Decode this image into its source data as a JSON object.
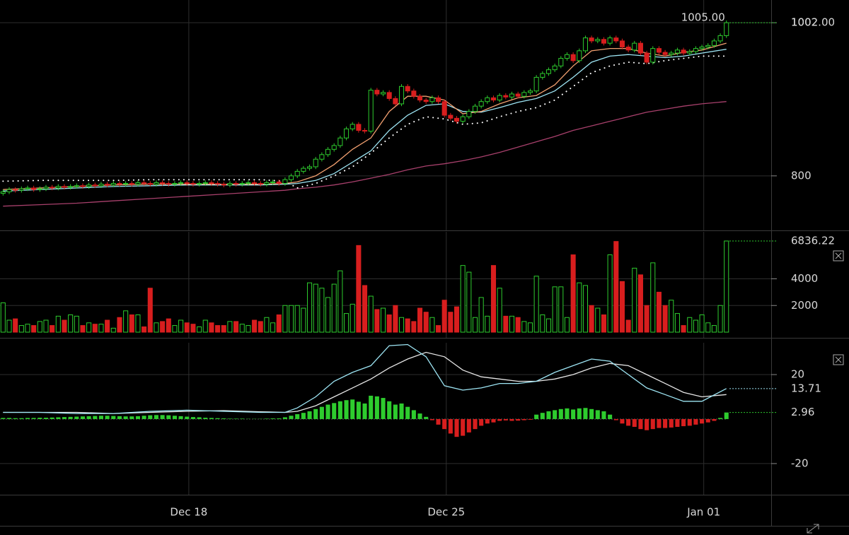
{
  "chart_data": [
    {
      "type": "candlestick",
      "ylim": [
        729,
        1032
      ],
      "yticks": [
        800,
        {
          "value": 1002,
          "label": "1002.00"
        }
      ],
      "high_label": {
        "value": 1005,
        "label": "1005.00"
      },
      "markers": [
        {
          "value": 1002,
          "color": "#2ecc2e"
        }
      ],
      "up_color": "#2ecc2e",
      "down_color": "#d81e1e",
      "open": [
        777,
        779,
        782,
        781,
        783,
        784,
        782,
        783,
        785,
        784,
        786,
        785,
        786,
        787,
        786,
        788,
        787,
        789,
        788,
        790,
        789,
        790,
        789,
        791,
        790,
        789,
        791,
        790,
        789,
        790,
        791,
        790,
        789,
        790,
        791,
        790,
        789,
        788,
        790,
        789,
        790,
        791,
        790,
        789,
        791,
        792,
        790,
        795,
        800,
        806,
        810,
        812,
        822,
        828,
        835,
        840,
        850,
        862,
        868,
        860,
        859,
        913,
        908,
        910,
        902,
        895,
        918,
        912,
        905,
        900,
        898,
        903,
        898,
        880,
        876,
        872,
        878,
        885,
        892,
        898,
        903,
        900,
        906,
        904,
        908,
        905,
        910,
        912,
        930,
        935,
        940,
        945,
        955,
        960,
        952,
        965,
        982,
        978,
        980,
        975,
        982,
        978,
        970,
        966,
        975,
        962,
        950,
        968,
        963,
        960,
        962,
        966,
        962,
        964,
        968,
        970,
        972,
        978,
        985
      ],
      "high": [
        782,
        785,
        785,
        786,
        787,
        787,
        786,
        788,
        788,
        789,
        789,
        789,
        790,
        790,
        791,
        791,
        792,
        792,
        793,
        793,
        793,
        793,
        794,
        794,
        793,
        794,
        794,
        793,
        793,
        794,
        794,
        793,
        793,
        794,
        794,
        793,
        792,
        793,
        793,
        793,
        794,
        794,
        793,
        794,
        795,
        795,
        798,
        803,
        809,
        813,
        815,
        825,
        831,
        838,
        843,
        853,
        865,
        871,
        871,
        863,
        916,
        916,
        913,
        913,
        905,
        921,
        921,
        915,
        908,
        903,
        906,
        906,
        901,
        883,
        879,
        881,
        888,
        895,
        901,
        906,
        906,
        909,
        909,
        911,
        911,
        913,
        915,
        933,
        938,
        943,
        948,
        958,
        963,
        963,
        968,
        985,
        985,
        983,
        983,
        985,
        985,
        981,
        973,
        978,
        978,
        965,
        971,
        971,
        966,
        965,
        969,
        969,
        967,
        971,
        973,
        975,
        981,
        988,
        1005
      ],
      "low": [
        774,
        776,
        778,
        778,
        780,
        779,
        779,
        780,
        781,
        781,
        782,
        782,
        783,
        783,
        783,
        784,
        784,
        785,
        785,
        786,
        786,
        786,
        786,
        787,
        786,
        786,
        787,
        786,
        786,
        787,
        787,
        786,
        786,
        787,
        787,
        786,
        785,
        785,
        786,
        786,
        787,
        787,
        786,
        786,
        788,
        787,
        787,
        792,
        797,
        803,
        807,
        809,
        819,
        825,
        832,
        837,
        847,
        859,
        857,
        856,
        856,
        905,
        905,
        899,
        892,
        892,
        909,
        902,
        897,
        895,
        895,
        895,
        877,
        873,
        869,
        869,
        875,
        882,
        889,
        895,
        897,
        897,
        901,
        901,
        902,
        902,
        907,
        909,
        927,
        932,
        937,
        942,
        952,
        949,
        949,
        962,
        975,
        975,
        972,
        972,
        975,
        967,
        963,
        963,
        959,
        947,
        947,
        960,
        957,
        957,
        959,
        959,
        959,
        961,
        965,
        967,
        969,
        975,
        982
      ],
      "close": [
        779,
        782,
        781,
        783,
        784,
        782,
        783,
        785,
        784,
        786,
        785,
        786,
        787,
        786,
        788,
        787,
        789,
        788,
        790,
        789,
        790,
        789,
        791,
        790,
        789,
        791,
        790,
        789,
        790,
        791,
        790,
        789,
        790,
        791,
        790,
        789,
        788,
        790,
        789,
        790,
        791,
        790,
        789,
        791,
        792,
        790,
        795,
        800,
        806,
        810,
        812,
        822,
        828,
        835,
        840,
        850,
        862,
        868,
        860,
        859,
        913,
        908,
        910,
        902,
        895,
        918,
        912,
        905,
        900,
        898,
        903,
        898,
        880,
        876,
        872,
        878,
        885,
        892,
        898,
        903,
        900,
        906,
        904,
        908,
        905,
        910,
        912,
        930,
        935,
        940,
        945,
        955,
        960,
        952,
        965,
        982,
        978,
        980,
        975,
        982,
        978,
        970,
        966,
        975,
        962,
        950,
        968,
        963,
        960,
        962,
        966,
        962,
        964,
        968,
        970,
        972,
        978,
        985,
        1002
      ],
      "overlays": [
        {
          "color": "#a8406c",
          "style": "solid",
          "x": [
            0,
            6,
            12,
            18,
            24,
            30,
            36,
            42,
            46,
            48,
            51,
            54,
            57,
            60,
            63,
            66,
            69,
            72,
            75,
            78,
            81,
            84,
            87,
            90,
            93,
            96,
            99,
            102,
            105,
            108,
            111,
            114,
            118
          ],
          "values": [
            760,
            762,
            764,
            767,
            770,
            773,
            776,
            779,
            781,
            783,
            785,
            788,
            792,
            797,
            802,
            808,
            813,
            816,
            820,
            825,
            831,
            838,
            845,
            852,
            860,
            866,
            872,
            878,
            884,
            888,
            892,
            895,
            898
          ]
        },
        {
          "color": "#ffffff",
          "style": "dotted",
          "x": [
            0,
            6,
            12,
            18,
            24,
            30,
            36,
            42,
            46,
            48,
            51,
            54,
            57,
            60,
            63,
            66,
            69,
            72,
            75,
            78,
            81,
            84,
            87,
            90,
            93,
            96,
            99,
            102,
            105,
            108,
            111,
            114,
            118
          ],
          "values": [
            793,
            794,
            794,
            794,
            795,
            795,
            795,
            795,
            793,
            784,
            790,
            800,
            812,
            830,
            850,
            868,
            878,
            875,
            868,
            870,
            878,
            885,
            890,
            900,
            918,
            936,
            945,
            950,
            948,
            952,
            955,
            958,
            958
          ]
        },
        {
          "color": "#9ee6f5",
          "style": "solid",
          "x": [
            0,
            6,
            12,
            18,
            24,
            30,
            36,
            42,
            46,
            48,
            51,
            54,
            57,
            60,
            63,
            66,
            69,
            72,
            75,
            78,
            81,
            84,
            87,
            90,
            93,
            96,
            99,
            102,
            105,
            108,
            111,
            114,
            118
          ],
          "values": [
            780,
            782,
            784,
            786,
            787,
            788,
            788,
            788,
            789,
            790,
            794,
            803,
            818,
            833,
            860,
            880,
            893,
            895,
            885,
            884,
            890,
            897,
            902,
            912,
            930,
            950,
            958,
            960,
            958,
            956,
            958,
            962,
            967
          ]
        },
        {
          "color": "#f2a070",
          "style": "solid",
          "x": [
            0,
            6,
            12,
            18,
            24,
            30,
            36,
            42,
            46,
            48,
            51,
            54,
            57,
            60,
            63,
            66,
            69,
            72,
            75,
            78,
            81,
            84,
            87,
            90,
            93,
            96,
            99,
            102,
            105,
            108,
            111,
            114,
            118
          ],
          "values": [
            782,
            784,
            786,
            788,
            789,
            789,
            789,
            789,
            790,
            792,
            800,
            815,
            835,
            850,
            885,
            905,
            905,
            900,
            882,
            885,
            895,
            903,
            906,
            920,
            945,
            965,
            968,
            968,
            962,
            958,
            963,
            966,
            975
          ]
        }
      ]
    },
    {
      "type": "volume",
      "ylim": [
        0,
        7525
      ],
      "yticks": [
        2000,
        4000
      ],
      "markers": [
        {
          "value": 6836.22,
          "label": "6836.22",
          "color": "#2ecc2e"
        }
      ],
      "up_color": "#2ecc2e",
      "down_color": "#d81e1e",
      "values": [
        2200,
        900,
        1000,
        500,
        600,
        500,
        800,
        900,
        500,
        1200,
        900,
        1300,
        1200,
        500,
        700,
        600,
        600,
        900,
        300,
        1100,
        1600,
        1300,
        1300,
        400,
        3300,
        700,
        800,
        1000,
        500,
        900,
        700,
        600,
        400,
        900,
        700,
        500,
        500,
        800,
        800,
        600,
        500,
        900,
        800,
        1100,
        700,
        1300,
        2000,
        2000,
        2000,
        1800,
        3700,
        3600,
        3300,
        2600,
        3600,
        4600,
        1400,
        2100,
        6500,
        3500,
        2700,
        1700,
        1800,
        1300,
        2000,
        1100,
        1000,
        800,
        1800,
        1500,
        1100,
        500,
        2400,
        1500,
        1900,
        5000,
        4500,
        1100,
        2600,
        1200,
        5000,
        3300,
        1200,
        1200,
        1100,
        800,
        700,
        4200,
        1300,
        1000,
        3400,
        3400,
        1100,
        5800,
        3700,
        3500,
        2000,
        1800,
        1300,
        5800,
        6800,
        3800,
        900,
        4800,
        4300,
        2000,
        5200,
        3000,
        2000,
        2400,
        1400,
        500,
        1100,
        900,
        1300,
        700,
        500,
        2000,
        6836.22
      ]
    },
    {
      "type": "macd",
      "ylim": [
        -34,
        34.3
      ],
      "yticks": [
        -20,
        20
      ],
      "xlim": [
        -0.5,
        125.3
      ],
      "xticks": [
        {
          "value": 30.3,
          "label": "Dec 18"
        },
        {
          "value": 72.3,
          "label": "Dec 25"
        },
        {
          "value": 114.3,
          "label": "Jan 01"
        }
      ],
      "up_color": "#2ecc2e",
      "down_color": "#d81e1e",
      "markers": [
        {
          "value": 13.71,
          "color": "#9ee6f5"
        },
        {
          "value": 2.96,
          "color": "#2ecc2e"
        }
      ],
      "histogram": [
        0.5,
        0.5,
        0.4,
        0.4,
        0.5,
        0.5,
        0.6,
        0.6,
        0.7,
        0.8,
        0.9,
        1.0,
        1.1,
        1.2,
        1.3,
        1.4,
        1.5,
        1.5,
        1.4,
        1.3,
        1.2,
        1.2,
        1.3,
        1.5,
        1.7,
        1.8,
        1.8,
        1.7,
        1.5,
        1.3,
        1.1,
        0.9,
        0.8,
        0.6,
        0.5,
        0.4,
        0.3,
        0.2,
        0.2,
        0.2,
        0.1,
        0.1,
        0.1,
        0.2,
        0.3,
        0.3,
        0.8,
        1.5,
        2.2,
        2.8,
        3.5,
        4.5,
        5.5,
        6.5,
        7.2,
        8.0,
        8.5,
        8.8,
        7.8,
        7.0,
        10.5,
        10.2,
        9.5,
        8.0,
        6.5,
        7.0,
        5.5,
        4.0,
        2.5,
        1.0,
        -0.5,
        -2.5,
        -4.5,
        -6.5,
        -8.0,
        -7.5,
        -6.0,
        -4.5,
        -3.0,
        -2.0,
        -1.5,
        -0.8,
        -0.6,
        -0.8,
        -0.7,
        -0.5,
        -0.3,
        2.0,
        2.8,
        3.5,
        4.0,
        4.5,
        4.8,
        4.3,
        4.8,
        5.0,
        4.5,
        4.0,
        3.5,
        2.0,
        -0.5,
        -2.0,
        -3.0,
        -3.5,
        -4.5,
        -5.0,
        -4.5,
        -4.0,
        -4.0,
        -3.8,
        -3.5,
        -3.2,
        -3.0,
        -2.5,
        -2.0,
        -1.5,
        -0.8,
        0.5,
        2.96
      ],
      "lines": [
        {
          "color": "#e6e6e6",
          "x": [
            0,
            6,
            12,
            18,
            24,
            30,
            36,
            42,
            46,
            48,
            51,
            54,
            57,
            60,
            63,
            66,
            69,
            72,
            75,
            78,
            81,
            84,
            87,
            90,
            93,
            96,
            99,
            102,
            105,
            108,
            111,
            114,
            118
          ],
          "values": [
            3,
            3,
            3,
            2.5,
            3,
            3.5,
            3.8,
            3.3,
            3,
            3.5,
            6,
            10,
            14,
            18,
            23,
            27,
            30,
            28,
            22,
            19,
            18,
            17,
            17,
            18,
            20,
            23,
            25,
            24,
            20,
            16,
            12,
            10,
            11
          ]
        },
        {
          "color": "#9ee6f5",
          "x": [
            0,
            6,
            12,
            18,
            24,
            30,
            36,
            42,
            46,
            48,
            51,
            54,
            57,
            60,
            63,
            66,
            69,
            72,
            75,
            78,
            81,
            84,
            87,
            90,
            93,
            96,
            99,
            102,
            105,
            108,
            111,
            114,
            118
          ],
          "values": [
            3,
            3,
            2.5,
            2.5,
            3.5,
            4,
            3.5,
            3,
            3,
            5,
            10,
            17,
            21,
            24,
            33,
            33.5,
            28,
            15,
            13,
            14,
            16,
            16,
            17,
            21,
            24,
            27,
            26,
            20,
            14,
            11,
            8,
            8,
            13.71
          ]
        }
      ]
    }
  ]
}
